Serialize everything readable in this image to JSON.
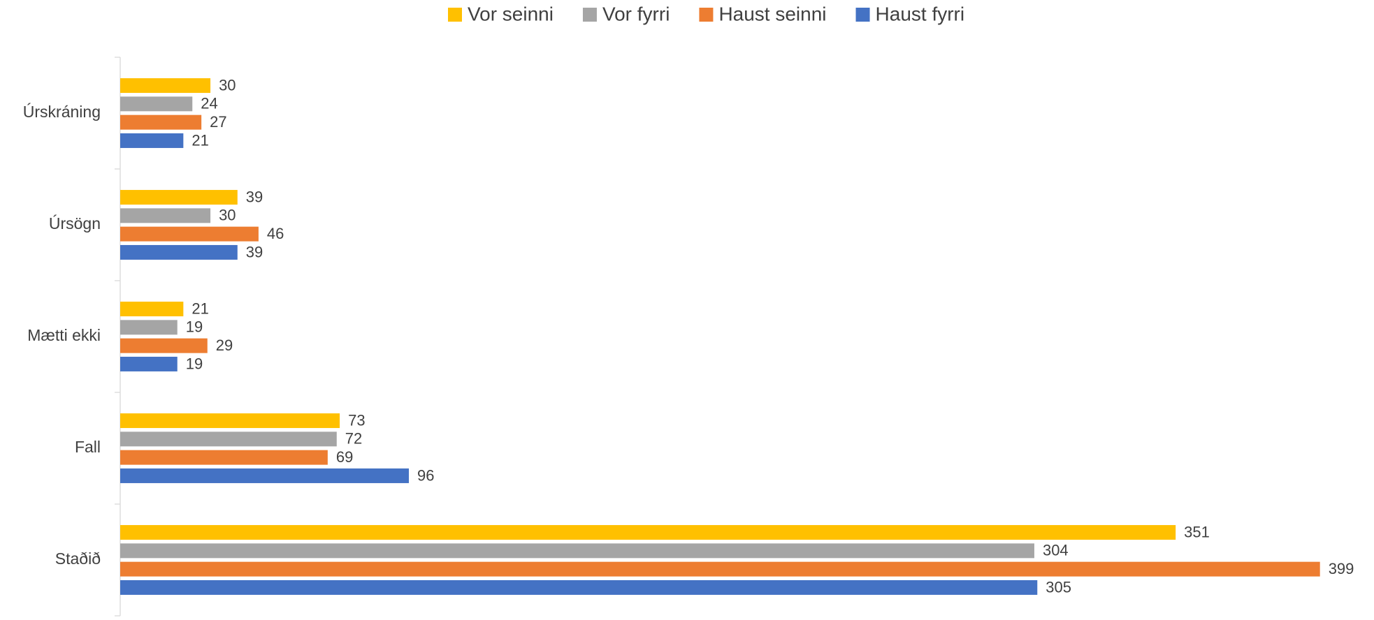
{
  "chart_data": {
    "type": "bar",
    "orientation": "horizontal",
    "categories": [
      "Úrskráning",
      "Úrsögn",
      "Mætti ekki",
      "Fall",
      "Staðið"
    ],
    "series": [
      {
        "name": "Vor seinni",
        "color": "#ffc000",
        "values": [
          30,
          39,
          21,
          73,
          351
        ]
      },
      {
        "name": "Vor fyrri",
        "color": "#a5a5a5",
        "values": [
          24,
          30,
          19,
          72,
          304
        ]
      },
      {
        "name": "Haust seinni",
        "color": "#ed7d31",
        "values": [
          27,
          46,
          29,
          69,
          399
        ]
      },
      {
        "name": "Haust fyrri",
        "color": "#4472c4",
        "values": [
          21,
          39,
          19,
          96,
          305
        ]
      }
    ],
    "xlim": [
      0,
      400
    ],
    "legend": "top",
    "data_labels": true
  }
}
